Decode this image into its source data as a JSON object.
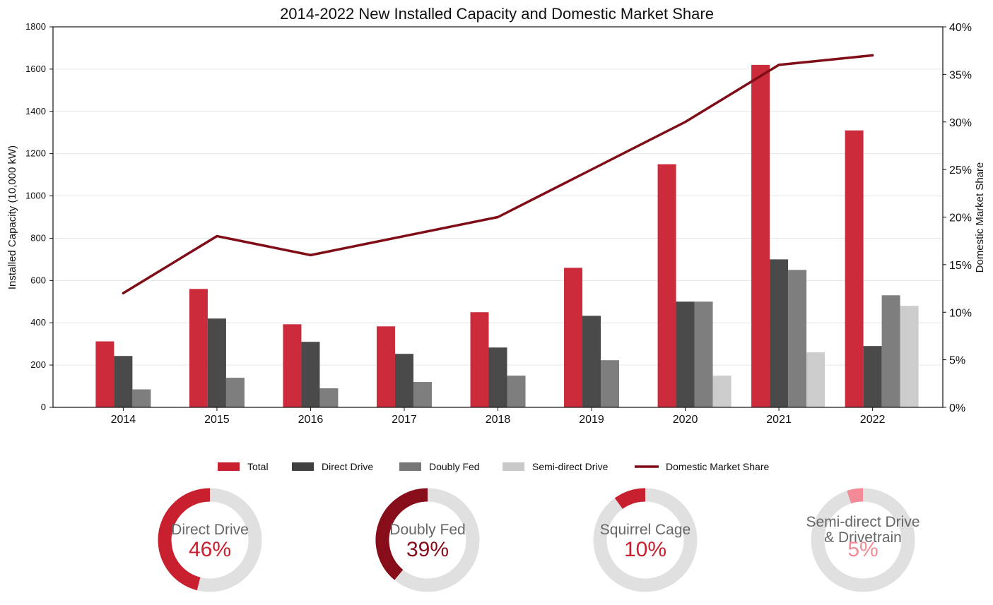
{
  "chart_data": [
    {
      "type": "bar",
      "title": "2014-2022 New Installed Capacity and Domestic Market Share",
      "xlabel": "",
      "ylabel": "Installed Capacity (10,000 kW)",
      "y2label": "Domestic Market Share",
      "ylim": [
        0,
        1800
      ],
      "y2lim": [
        0,
        40
      ],
      "yticks": [
        "0",
        "200",
        "400",
        "600",
        "800",
        "1000",
        "1200",
        "1400",
        "1600",
        "1800"
      ],
      "y2ticks": [
        "0%",
        "5%",
        "10%",
        "15%",
        "20%",
        "25%",
        "30%",
        "35%",
        "40%"
      ],
      "categories": [
        "2014",
        "2015",
        "2016",
        "2017",
        "2018",
        "2019",
        "2020",
        "2021",
        "2022"
      ],
      "grid": "horizontal",
      "legend_position": "bottom",
      "series": [
        {
          "name": "Total",
          "kind": "bar",
          "color": "#c8202f",
          "values": [
            312,
            560,
            393,
            383,
            450,
            660,
            1150,
            1620,
            1310
          ]
        },
        {
          "name": "Direct Drive",
          "kind": "bar",
          "color": "#404040",
          "values": [
            243,
            420,
            310,
            253,
            283,
            433,
            500,
            700,
            290
          ]
        },
        {
          "name": "Doubly Fed",
          "kind": "bar",
          "color": "#777777",
          "values": [
            85,
            140,
            90,
            120,
            150,
            223,
            500,
            650,
            530
          ]
        },
        {
          "name": "Semi-direct Drive",
          "kind": "bar",
          "color": "#c9c9c9",
          "values": [
            0,
            0,
            0,
            0,
            0,
            0,
            150,
            260,
            480
          ]
        },
        {
          "name": "Domestic Market Share",
          "kind": "line",
          "axis": "right",
          "color": "#7f0c16",
          "values": [
            12,
            18,
            16,
            18,
            20,
            25,
            30,
            36,
            37
          ]
        }
      ]
    },
    {
      "type": "pie",
      "style": "donut",
      "slices": [
        {
          "label": "Direct Drive",
          "value": 46,
          "display": "46%",
          "color": "#c8202f"
        },
        {
          "label": "Doubly Fed",
          "value": 39,
          "display": "39%",
          "color": "#870d1a"
        },
        {
          "label": "Squirrel Cage",
          "value": 10,
          "display": "10%",
          "color": "#c8202f"
        },
        {
          "label": "Semi-direct Drive & Drivetrain",
          "label_lines": [
            "Semi-direct Drive",
            "& Drivetrain"
          ],
          "value": 5,
          "display": "5%",
          "color": "#f48a96"
        }
      ],
      "track_color": "#e0e0e0",
      "label_color": "#666666"
    }
  ]
}
